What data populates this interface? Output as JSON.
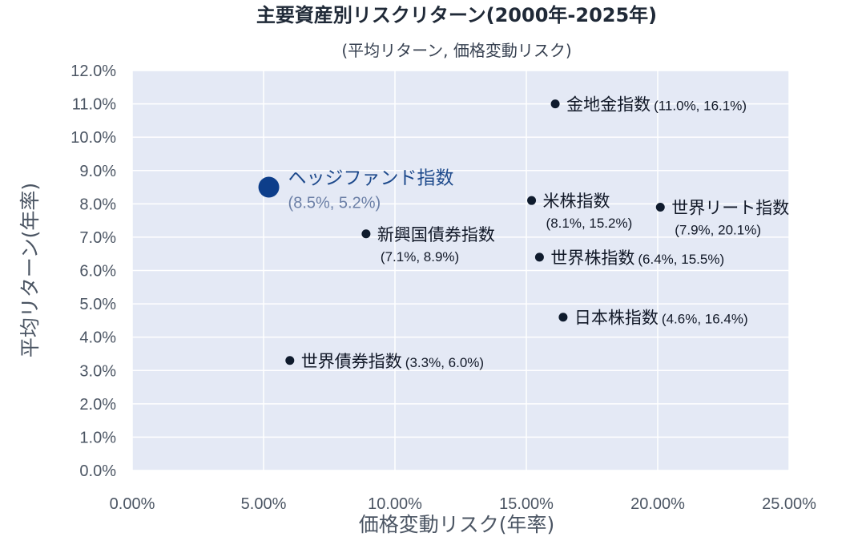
{
  "chart_data": {
    "type": "scatter",
    "title": "主要資産別リスクリターン(2000年-2025年)",
    "subtitle": "(平均リターン, 価格変動リスク)",
    "xlabel": "価格変動リスク(年率)",
    "ylabel": "平均リターン(年率)",
    "xlim": [
      0,
      25
    ],
    "ylim": [
      0,
      12
    ],
    "x_ticks": [
      "0.00%",
      "5.00%",
      "10.00%",
      "15.00%",
      "20.00%",
      "25.00%"
    ],
    "y_ticks": [
      "0.0%",
      "1.0%",
      "2.0%",
      "3.0%",
      "4.0%",
      "5.0%",
      "6.0%",
      "7.0%",
      "8.0%",
      "9.0%",
      "10.0%",
      "11.0%",
      "12.0%"
    ],
    "grid": true,
    "colors": {
      "plot_bg": "#e4e9f5",
      "point": "#0f1b2d",
      "highlight": "#0d3e8a"
    },
    "points": [
      {
        "name": "ヘッジファンド指数",
        "value_label": "(8.5%, 5.2%)",
        "x": 5.2,
        "y": 8.5,
        "highlight": true,
        "label_layout": "right-below"
      },
      {
        "name": "金地金指数",
        "value_label": "(11.0%, 16.1%)",
        "x": 16.1,
        "y": 11.0,
        "label_layout": "inline"
      },
      {
        "name": "米株指数",
        "value_label": "(8.1%, 15.2%)",
        "x": 15.2,
        "y": 8.1,
        "label_layout": "below"
      },
      {
        "name": "世界リート指数",
        "value_label": "(7.9%, 20.1%)",
        "x": 20.1,
        "y": 7.9,
        "label_layout": "below"
      },
      {
        "name": "新興国債券指数",
        "value_label": "(7.1%, 8.9%)",
        "x": 8.9,
        "y": 7.1,
        "label_layout": "below"
      },
      {
        "name": "世界株指数",
        "value_label": "(6.4%, 15.5%)",
        "x": 15.5,
        "y": 6.4,
        "label_layout": "inline"
      },
      {
        "name": "日本株指数",
        "value_label": "(4.6%, 16.4%)",
        "x": 16.4,
        "y": 4.6,
        "label_layout": "inline"
      },
      {
        "name": "世界債券指数",
        "value_label": "(3.3%, 6.0%)",
        "x": 6.0,
        "y": 3.3,
        "label_layout": "inline"
      }
    ]
  }
}
